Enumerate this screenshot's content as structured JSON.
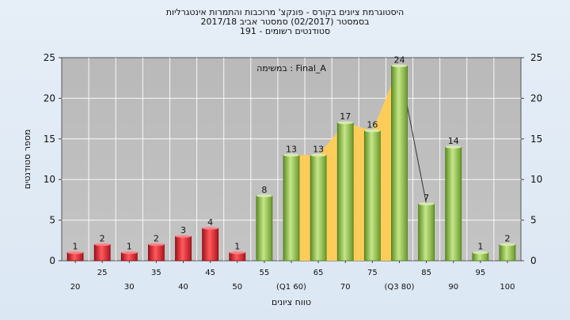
{
  "chart_data": {
    "type": "bar",
    "title_lines": [
      "היסטוגרמת ציונים בקורס - פונקצ' מרוכבות והתמרות אינטגרליות",
      "בסמסטר  (02/2017)  סמסטר אביב 2017/18",
      "סטודנטים רשומים - 191"
    ],
    "annotation": "במשימה : Final_A",
    "xlabel": "טווח ציונים",
    "ylabel": "מספר סטודנטים",
    "ylim": [
      0,
      25
    ],
    "yticks": [
      0,
      5,
      10,
      15,
      20,
      25
    ],
    "categories": [
      "20",
      "25",
      "30",
      "35",
      "40",
      "45",
      "50",
      "55",
      "(Q1 60)",
      "65",
      "70",
      "75",
      "(Q3 80)",
      "85",
      "90",
      "95",
      "100"
    ],
    "values": [
      1,
      2,
      1,
      2,
      3,
      4,
      1,
      8,
      13,
      13,
      17,
      16,
      24,
      7,
      14,
      1,
      2
    ],
    "bar_colors": [
      "#e0252f",
      "#e0252f",
      "#e0252f",
      "#e0252f",
      "#e0252f",
      "#e0252f",
      "#e0252f",
      "#8fc04a",
      "#8fc04a",
      "#8fc04a",
      "#8fc04a",
      "#8fc04a",
      "#8fc04a",
      "#8fc04a",
      "#8fc04a",
      "#8fc04a",
      "#8fc04a"
    ],
    "highlight_area_color": "#ffcc55",
    "grid": true
  }
}
